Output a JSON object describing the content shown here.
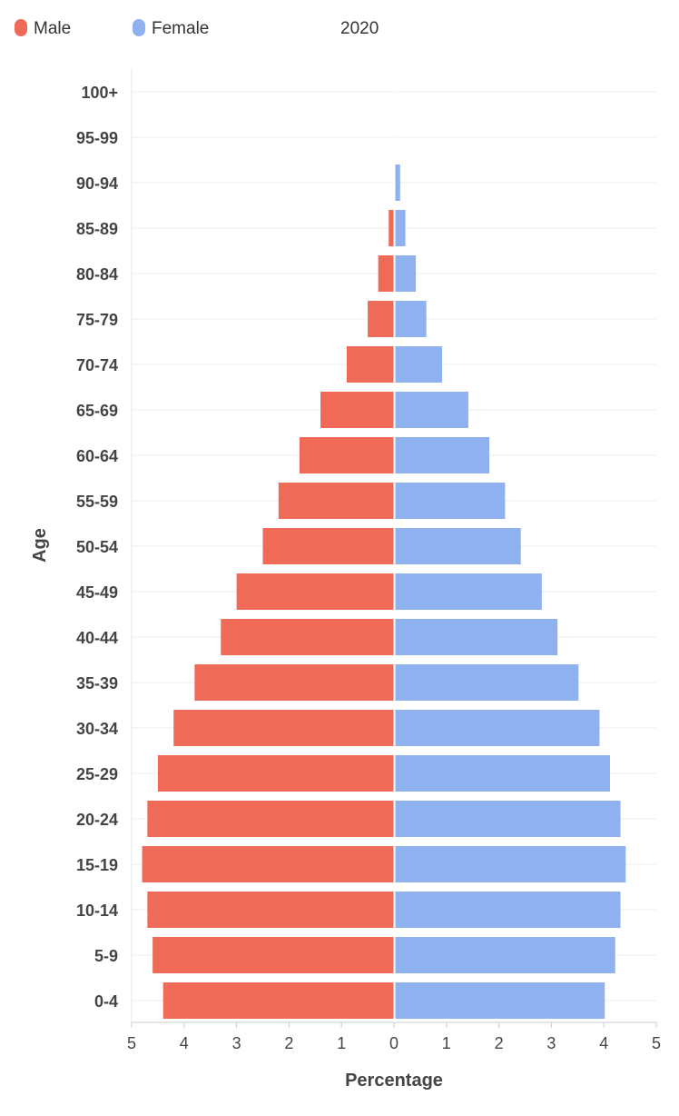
{
  "chart_data": {
    "type": "bar",
    "orientation": "horizontal-population-pyramid",
    "year": "2020",
    "categories": [
      "0-4",
      "5-9",
      "10-14",
      "15-19",
      "20-24",
      "25-29",
      "30-34",
      "35-39",
      "40-44",
      "45-49",
      "50-54",
      "55-59",
      "60-64",
      "65-69",
      "70-74",
      "75-79",
      "80-84",
      "85-89",
      "90-94",
      "95-99",
      "100+"
    ],
    "series": [
      {
        "name": "Male",
        "color": "#ef6b57",
        "values": [
          4.4,
          4.6,
          4.7,
          4.8,
          4.7,
          4.5,
          4.2,
          3.8,
          3.3,
          3.0,
          2.5,
          2.2,
          1.8,
          1.4,
          0.9,
          0.5,
          0.3,
          0.1,
          0.0,
          0.0,
          0.0
        ]
      },
      {
        "name": "Female",
        "color": "#8fb1f0",
        "values": [
          4.0,
          4.2,
          4.3,
          4.4,
          4.3,
          4.1,
          3.9,
          3.5,
          3.1,
          2.8,
          2.4,
          2.1,
          1.8,
          1.4,
          0.9,
          0.6,
          0.4,
          0.2,
          0.1,
          0.0,
          0.0
        ]
      }
    ],
    "xlabel": "Percentage",
    "ylabel": "Age",
    "xlim": [
      -5,
      5
    ],
    "xticks": [
      "5",
      "4",
      "3",
      "2",
      "1",
      "0",
      "1",
      "2",
      "3",
      "4",
      "5"
    ],
    "legend": "top-left",
    "grid": true
  }
}
